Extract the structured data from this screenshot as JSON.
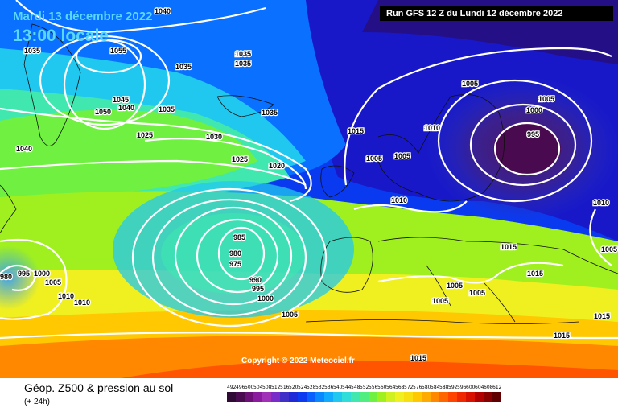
{
  "header": {
    "date": "Mardi 13 décembre 2022",
    "time": "13:00 locale",
    "run": "Run GFS 12 Z du Lundi 12 décembre 2022"
  },
  "copyright": "Copyright © 2022 Meteociel.fr",
  "footer": {
    "title": "Géop. Z500 & pression au sol",
    "subtitle": "(+ 24h)"
  },
  "scale": {
    "labels": [
      "492",
      "496",
      "500",
      "504",
      "508",
      "512",
      "516",
      "520",
      "524",
      "528",
      "532",
      "536",
      "540",
      "544",
      "548",
      "552",
      "556",
      "560",
      "564",
      "568",
      "572",
      "576",
      "580",
      "584",
      "588",
      "592",
      "596",
      "600",
      "604",
      "608",
      "612"
    ],
    "colors": [
      "#2e0a35",
      "#4a0a50",
      "#6c1078",
      "#8a1a9e",
      "#a030b8",
      "#7a2cc8",
      "#4030c8",
      "#1e2ad8",
      "#0c3af0",
      "#0a60ff",
      "#0a88ff",
      "#10aaff",
      "#20c8f0",
      "#30ddd8",
      "#40e8b0",
      "#50ee80",
      "#70f040",
      "#a0f020",
      "#d0f020",
      "#f0f020",
      "#f8e010",
      "#ffc800",
      "#ffaa00",
      "#ff8800",
      "#ff6600",
      "#ff4400",
      "#f02800",
      "#d81000",
      "#b00000",
      "#880000",
      "#600000"
    ]
  },
  "isobars": [
    "1040",
    "1035",
    "1055",
    "1035",
    "1035",
    "1035",
    "1045",
    "1050",
    "1040",
    "1035",
    "1035",
    "1025",
    "1030",
    "1025",
    "1020",
    "1040",
    "1015",
    "1005",
    "1010",
    "1005",
    "1005",
    "1000",
    "995",
    "1005",
    "1010",
    "1010",
    "1005",
    "985",
    "980",
    "975",
    "990",
    "995",
    "1000",
    "1005",
    "980",
    "995",
    "1000",
    "1005",
    "1010",
    "1010",
    "1015",
    "1015",
    "1015",
    "1005",
    "1005",
    "1005",
    "1015",
    "1015"
  ]
}
